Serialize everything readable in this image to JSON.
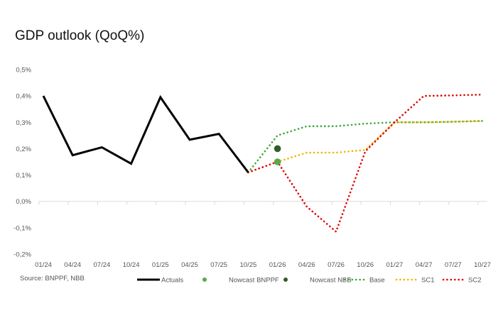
{
  "title": "GDP outlook (QoQ%)",
  "source": "Source: BNPPF, NBB",
  "chart_data": {
    "type": "line",
    "title": "GDP outlook (QoQ%)",
    "xlabel": "",
    "ylabel": "",
    "ylim": [
      -0.2,
      0.5
    ],
    "yticks": [
      0.5,
      0.4,
      0.3,
      0.2,
      0.1,
      0.0,
      -0.1,
      -0.2
    ],
    "ytick_labels": [
      "0,5%",
      "0,4%",
      "0,3%",
      "0,2%",
      "0,1%",
      "0,0%",
      "-0,1%",
      "-0,2%"
    ],
    "categories": [
      "01/24",
      "04/24",
      "07/24",
      "10/24",
      "01/25",
      "04/25",
      "07/25",
      "10/25",
      "01/26",
      "04/26",
      "07/26",
      "10/26",
      "01/27",
      "04/27",
      "07/27",
      "10/27"
    ],
    "legend_position": "bottom",
    "series": [
      {
        "name": "Actuals",
        "color": "#000000",
        "style": "solid",
        "values": [
          0.4,
          0.175,
          0.205,
          0.143,
          0.395,
          0.234,
          0.256,
          0.11,
          null,
          null,
          null,
          null,
          null,
          null,
          null,
          null
        ]
      },
      {
        "name": "Nowcast BNPPF",
        "color": "#5aa84a",
        "style": "marker",
        "values": [
          null,
          null,
          null,
          null,
          null,
          null,
          null,
          null,
          0.15,
          null,
          null,
          null,
          null,
          null,
          null,
          null
        ]
      },
      {
        "name": "Nowcast NBB",
        "color": "#2f5e22",
        "style": "marker",
        "values": [
          null,
          null,
          null,
          null,
          null,
          null,
          null,
          null,
          0.2,
          null,
          null,
          null,
          null,
          null,
          null,
          null
        ]
      },
      {
        "name": "Base",
        "color": "#3aa83a",
        "style": "dotted",
        "values": [
          null,
          null,
          null,
          null,
          null,
          null,
          null,
          0.11,
          0.25,
          0.285,
          0.285,
          0.295,
          0.3,
          0.3,
          0.302,
          0.305
        ]
      },
      {
        "name": "SC1",
        "color": "#f0b400",
        "style": "dotted",
        "values": [
          null,
          null,
          null,
          null,
          null,
          null,
          null,
          0.11,
          0.15,
          0.185,
          0.185,
          0.195,
          0.3,
          0.3,
          0.302,
          0.305
        ]
      },
      {
        "name": "SC2",
        "color": "#e00000",
        "style": "dotted",
        "values": [
          null,
          null,
          null,
          null,
          null,
          null,
          null,
          0.11,
          0.15,
          -0.02,
          -0.115,
          0.19,
          0.3,
          0.4,
          0.402,
          0.405
        ]
      }
    ]
  }
}
